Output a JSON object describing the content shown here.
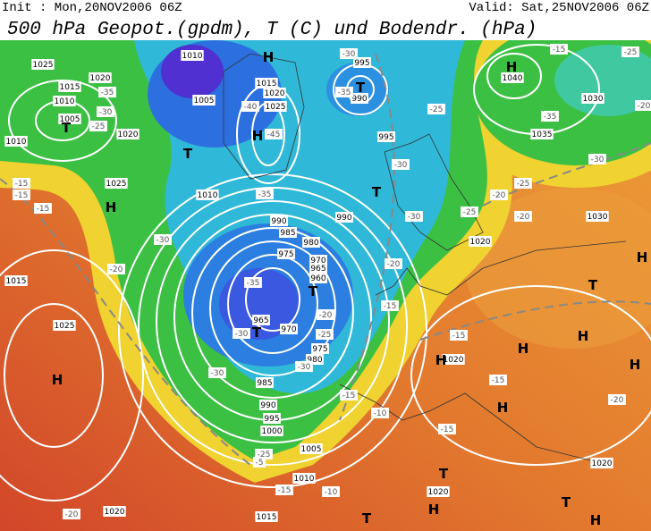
{
  "header": {
    "init": "Init : Mon,20NOV2006 06Z",
    "valid": "Valid: Sat,25NOV2006 06Z",
    "title": "500 hPa Geopot.(gpdm), T (C) und Bodendr. (hPa)"
  },
  "isobar_labels": [
    "1025",
    "1020",
    "1015",
    "1010",
    "1005",
    "1010",
    "1020",
    "1025",
    "1010",
    "1005",
    "1015",
    "1020",
    "1025",
    "995",
    "990",
    "995",
    "1010",
    "990",
    "985",
    "980",
    "975",
    "970",
    "965",
    "960",
    "965",
    "970",
    "975",
    "980",
    "985",
    "990",
    "995",
    "1000",
    "1005",
    "1010",
    "1015",
    "1020",
    "1015",
    "1025",
    "1040",
    "1030",
    "1035",
    "1030",
    "1020",
    "1020",
    "1020",
    "1020",
    "990"
  ],
  "temperature_labels": [
    "-35",
    "-30",
    "-25",
    "-15",
    "-15",
    "-15",
    "-20",
    "-30",
    "-40",
    "-45",
    "-35",
    "-30",
    "-35",
    "-25",
    "-30",
    "-30",
    "-25",
    "-20",
    "-15",
    "-35",
    "-30",
    "-25",
    "-30",
    "-30",
    "-20",
    "-15",
    "-10",
    "-15",
    "-15",
    "-20",
    "-25",
    "-20",
    "-30",
    "-35",
    "-25",
    "-20",
    "-20",
    "-15",
    "-10",
    "-15",
    "-25",
    "-5",
    "-20",
    "-15"
  ],
  "pressure_centers": [
    "H",
    "H",
    "T",
    "T",
    "H",
    "T",
    "T",
    "T",
    "H",
    "H",
    "T",
    "H",
    "H",
    "H",
    "T",
    "H",
    "H",
    "H",
    "T",
    "H",
    "T",
    "T",
    "H"
  ]
}
